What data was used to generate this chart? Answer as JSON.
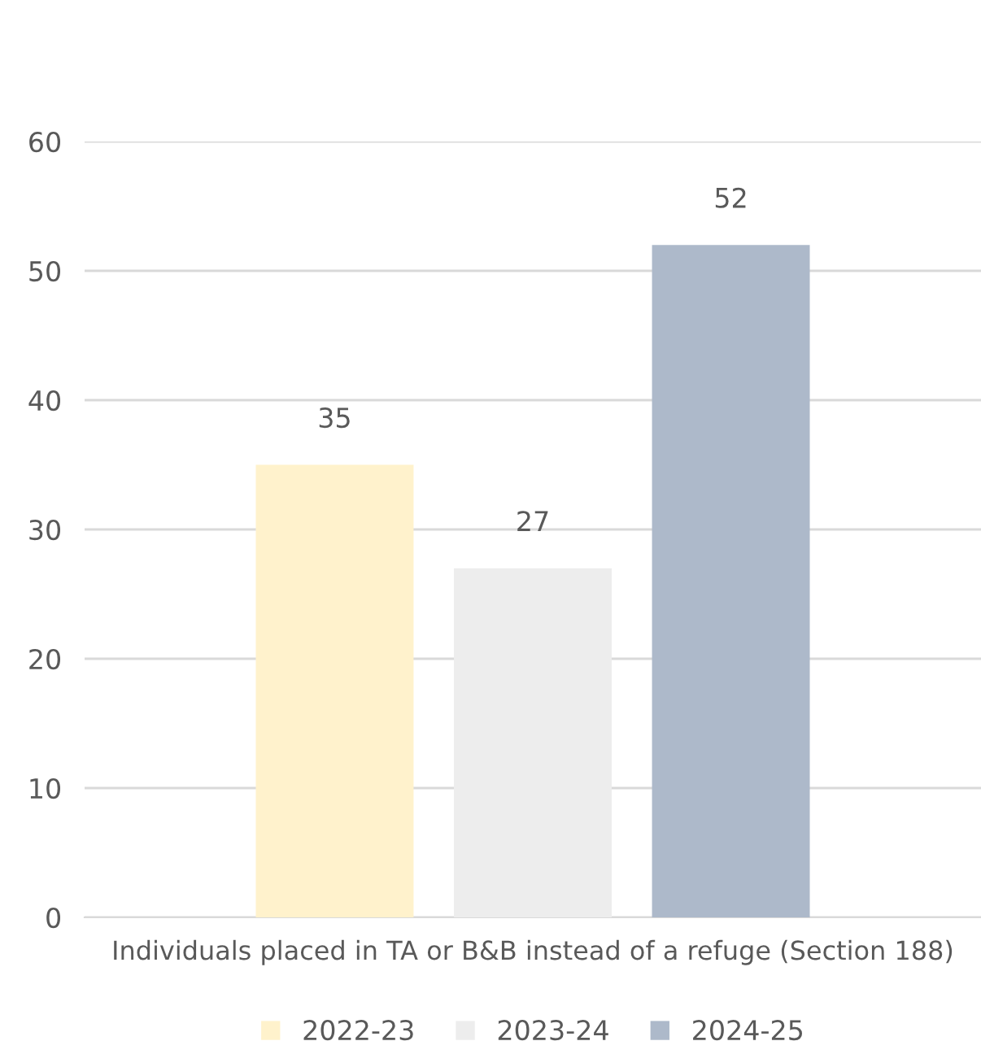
{
  "chart_data": {
    "type": "bar",
    "categories": [
      "Individuals placed in TA or B&B instead of a refuge (Section 188)"
    ],
    "series": [
      {
        "name": "2022-23",
        "color": "#fff2cc",
        "values": [
          35
        ]
      },
      {
        "name": "2023-24",
        "color": "#ededed",
        "values": [
          27
        ]
      },
      {
        "name": "2024-25",
        "color": "#adb9ca",
        "values": [
          52
        ]
      }
    ],
    "ylim": [
      0,
      60
    ],
    "yticks": [
      0,
      10,
      20,
      30,
      40,
      50,
      60
    ],
    "grid": "y",
    "legend": "bottom",
    "data_labels": true
  }
}
